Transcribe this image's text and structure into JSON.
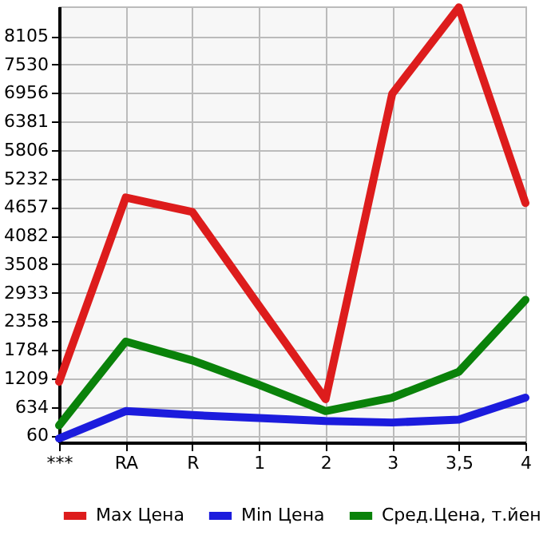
{
  "chart_data": {
    "type": "line",
    "categories": [
      "***",
      "RA",
      "R",
      "1",
      "2",
      "3",
      "3,5",
      "4"
    ],
    "series": [
      {
        "name": "Max Цена",
        "color": "#dd1c1c",
        "values": [
          1140,
          4850,
          4560,
          2670,
          790,
          6940,
          8680,
          4740
        ]
      },
      {
        "name": "Min Цена",
        "color": "#1c1cdd",
        "values": [
          0,
          550,
          470,
          410,
          350,
          320,
          380,
          820
        ]
      },
      {
        "name": "Сред.Цена, т.йен",
        "color": "#0a820a",
        "values": [
          260,
          1950,
          1570,
          1080,
          550,
          820,
          1340,
          2790
        ]
      }
    ],
    "ylim": [
      -80,
      8700
    ],
    "yticks": [
      60,
      634,
      1209,
      1784,
      2358,
      2933,
      3508,
      4082,
      4657,
      5232,
      5806,
      6381,
      6956,
      7530,
      8105
    ],
    "grid": true,
    "legend": "bottom",
    "marker": "none",
    "line_style": "solid"
  }
}
